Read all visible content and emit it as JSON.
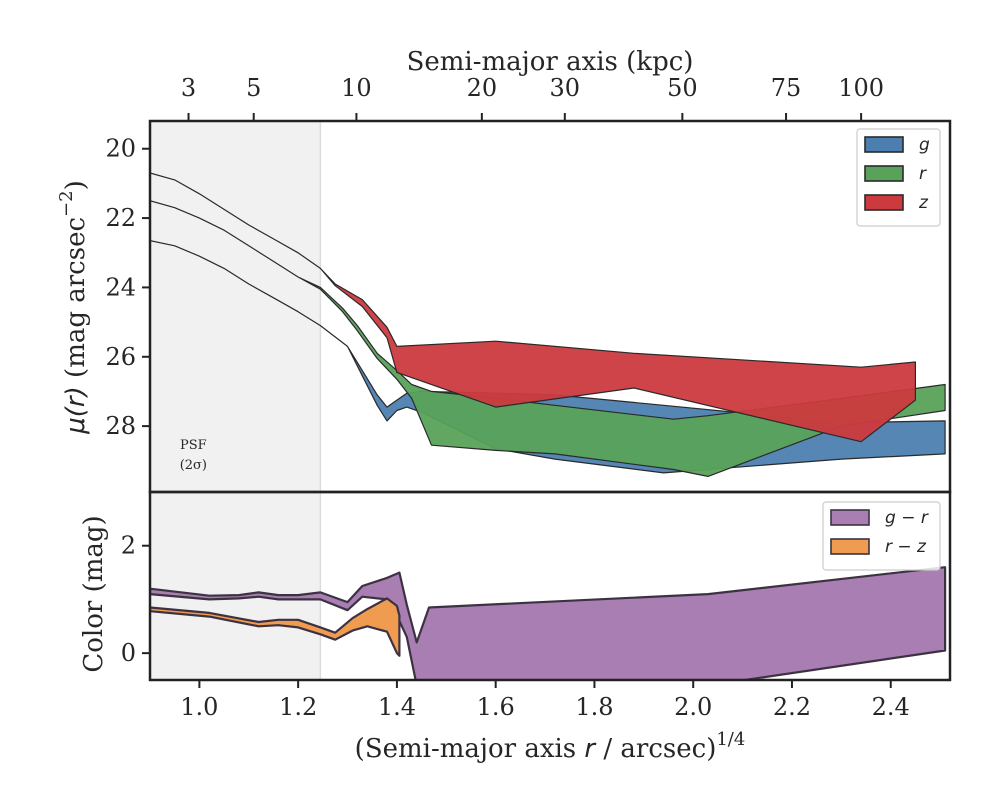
{
  "chart_data": [
    {
      "type": "area",
      "panel": "top",
      "xlabel": "(Semi-major axis r / arcsec)^1/4",
      "ylabel": "μ(r) (mag arcsec⁻²)",
      "top_axis_label": "Semi-major axis (kpc)",
      "top_axis_ticks": [
        {
          "label": "3",
          "x": 0.978
        },
        {
          "label": "5",
          "x": 1.11
        },
        {
          "label": "10",
          "x": 1.318
        },
        {
          "label": "20",
          "x": 1.572
        },
        {
          "label": "30",
          "x": 1.74
        },
        {
          "label": "50",
          "x": 1.978
        },
        {
          "label": "75",
          "x": 2.188
        },
        {
          "label": "100",
          "x": 2.34
        }
      ],
      "xlim": [
        0.9,
        2.52
      ],
      "ylim": [
        29.9,
        19.2
      ],
      "yticks": [
        20,
        22,
        24,
        26,
        28
      ],
      "psf_region": {
        "x": [
          0.9,
          1.245
        ],
        "label_line1": "PSF",
        "label_line2": "(2σ)"
      },
      "grid": false,
      "legend_position": "top-right",
      "series": [
        {
          "name": "g",
          "color": "#4c7fb0",
          "x": [
            0.9,
            0.95,
            1.0,
            1.05,
            1.1,
            1.15,
            1.2,
            1.245,
            1.3,
            1.33,
            1.36,
            1.38,
            1.4,
            1.42,
            1.45,
            1.6,
            1.72,
            1.94,
            2.3,
            2.51
          ],
          "lower": [
            22.65,
            22.8,
            23.1,
            23.45,
            23.9,
            24.3,
            24.7,
            25.1,
            25.7,
            26.4,
            27.1,
            27.45,
            27.25,
            27.05,
            27.0,
            27.05,
            27.1,
            27.4,
            27.9,
            27.85
          ],
          "upper": [
            22.65,
            22.8,
            23.1,
            23.45,
            23.9,
            24.3,
            24.7,
            25.1,
            25.7,
            26.55,
            27.4,
            27.85,
            27.55,
            27.45,
            27.6,
            28.65,
            28.95,
            29.35,
            28.95,
            28.8
          ]
        },
        {
          "name": "r",
          "color": "#59a25a",
          "x": [
            0.9,
            0.95,
            1.0,
            1.05,
            1.1,
            1.15,
            1.2,
            1.245,
            1.29,
            1.32,
            1.36,
            1.4,
            1.43,
            1.47,
            1.6,
            1.72,
            1.96,
            2.03,
            2.3,
            2.51
          ],
          "lower": [
            21.5,
            21.7,
            22.0,
            22.35,
            22.8,
            23.25,
            23.7,
            24.0,
            24.6,
            25.1,
            25.9,
            26.4,
            26.8,
            27.0,
            27.2,
            27.4,
            27.8,
            27.7,
            27.2,
            26.8
          ],
          "upper": [
            21.5,
            21.7,
            22.0,
            22.35,
            22.8,
            23.25,
            23.7,
            24.05,
            24.7,
            25.25,
            26.05,
            26.65,
            27.2,
            28.55,
            28.7,
            28.8,
            29.25,
            29.45,
            28.0,
            27.55
          ]
        },
        {
          "name": "z",
          "color": "#cc3a3e",
          "x": [
            0.9,
            0.95,
            1.0,
            1.05,
            1.1,
            1.15,
            1.2,
            1.245,
            1.275,
            1.33,
            1.38,
            1.4,
            1.6,
            1.88,
            2.34,
            2.45
          ],
          "lower": [
            20.7,
            20.9,
            21.3,
            21.75,
            22.2,
            22.6,
            23.0,
            23.45,
            23.9,
            24.35,
            25.15,
            25.7,
            25.55,
            25.9,
            26.3,
            26.15
          ],
          "upper": [
            20.7,
            20.9,
            21.3,
            21.75,
            22.2,
            22.6,
            23.0,
            23.45,
            23.95,
            24.55,
            25.45,
            26.45,
            27.45,
            26.9,
            28.45,
            27.25
          ]
        }
      ]
    },
    {
      "type": "area",
      "panel": "bottom",
      "xlabel": "(Semi-major axis r / arcsec)^1/4",
      "ylabel": "Color (mag)",
      "xlim": [
        0.9,
        2.52
      ],
      "ylim": [
        -0.5,
        3.0
      ],
      "yticks": [
        0,
        2
      ],
      "xticks": [
        1.0,
        1.2,
        1.4,
        1.6,
        1.8,
        2.0,
        2.2,
        2.4
      ],
      "xtick_labels": [
        "1.0",
        "1.2",
        "1.4",
        "1.6",
        "1.8",
        "2.0",
        "2.2",
        "2.4"
      ],
      "grid": false,
      "legend_position": "top-right",
      "series": [
        {
          "name": "g − r",
          "color": "#a97eb2",
          "x": [
            0.9,
            1.02,
            1.08,
            1.12,
            1.16,
            1.2,
            1.245,
            1.3,
            1.33,
            1.38,
            1.405,
            1.42,
            1.44,
            1.465,
            2.03,
            2.51
          ],
          "lower": [
            1.1,
            1.0,
            1.02,
            1.05,
            1.0,
            1.0,
            1.0,
            0.8,
            1.05,
            1.0,
            0.6,
            0.3,
            -0.6,
            -0.6,
            -0.6,
            0.05
          ],
          "upper": [
            1.2,
            1.07,
            1.08,
            1.13,
            1.08,
            1.08,
            1.13,
            0.95,
            1.25,
            1.4,
            1.5,
            0.9,
            0.2,
            0.85,
            1.1,
            1.6
          ]
        },
        {
          "name": "r − z",
          "color": "#ef9b50",
          "x": [
            0.9,
            1.02,
            1.12,
            1.16,
            1.2,
            1.245,
            1.275,
            1.31,
            1.34,
            1.38,
            1.4,
            1.405
          ],
          "lower": [
            0.78,
            0.68,
            0.5,
            0.52,
            0.48,
            0.35,
            0.25,
            0.42,
            0.5,
            0.4,
            0.0,
            -0.05
          ],
          "upper": [
            0.85,
            0.75,
            0.58,
            0.62,
            0.62,
            0.48,
            0.38,
            0.65,
            0.82,
            1.02,
            0.88,
            0.7
          ]
        }
      ]
    }
  ]
}
